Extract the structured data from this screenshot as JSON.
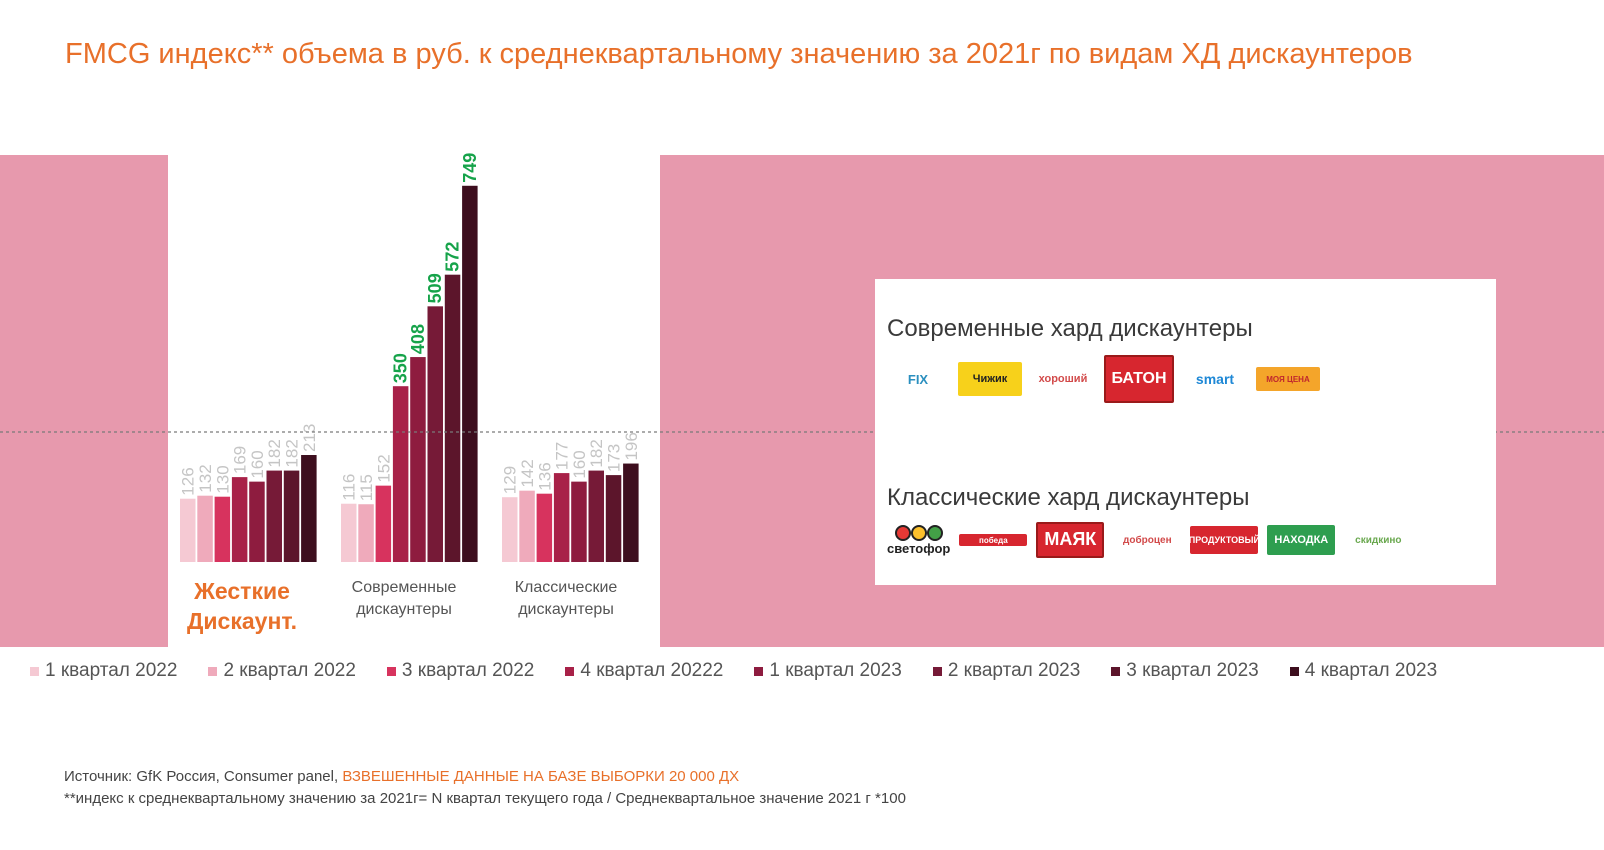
{
  "title": "FMCG индекс** объема в руб. к среднеквартальному значению за 2021г по видам ХД дискаунтеров",
  "chart_data": {
    "type": "bar",
    "categories": [
      "Жесткие Дискаунт.",
      "Современные дискаунтеры",
      "Классические дискаунтеры"
    ],
    "series": [
      {
        "name": "1 квартал 2022",
        "values": [
          126,
          116,
          129
        ],
        "color": "#f5c9d3"
      },
      {
        "name": "2 квартал 2022",
        "values": [
          132,
          115,
          142
        ],
        "color": "#efaabb"
      },
      {
        "name": "3 квартал 2022",
        "values": [
          130,
          152,
          136
        ],
        "color": "#d7335e"
      },
      {
        "name": "4 квартал 20222",
        "values": [
          169,
          350,
          177
        ],
        "color": "#a82148"
      },
      {
        "name": "1 квартал 2023",
        "values": [
          160,
          408,
          160
        ],
        "color": "#8e1c3f"
      },
      {
        "name": "2 квартал 2023",
        "values": [
          182,
          509,
          182
        ],
        "color": "#761a37"
      },
      {
        "name": "3 квартал 2023",
        "values": [
          182,
          572,
          173
        ],
        "color": "#5c152b"
      },
      {
        "name": "4 квартал 2023",
        "values": [
          213,
          749,
          196
        ],
        "color": "#3d0e1e"
      }
    ],
    "highlight_color": "#16a34a",
    "label_color": "#c5c5c5",
    "reference_line": 100,
    "ylim": [
      0,
      749
    ]
  },
  "panel": {
    "modern_heading": "Современные хард дискаунтеры",
    "modern_logos": [
      "FIX",
      "Чижик",
      "хороший",
      "БАТОН",
      "smart",
      "МОЯ ЦЕНА"
    ],
    "classic_heading": "Классические хард дискаунтеры",
    "classic_logos": [
      "светофор",
      "победа",
      "МАЯК",
      "доброцен",
      "ПРОДУКТОВЫЙ",
      "НАХОДКА",
      "скидкино"
    ]
  },
  "footer": {
    "source_prefix": "Источник: GfK Россия, Consumer panel, ",
    "source_highlight": "ВЗВЕШЕННЫЕ ДАННЫЕ НА БАЗЕ ВЫБОРКИ 20 000 ДХ",
    "note": "**индекс к среднеквартальному значению за 2021г= N квартал текущего года / Среднеквартальное значение 2021 г *100"
  }
}
